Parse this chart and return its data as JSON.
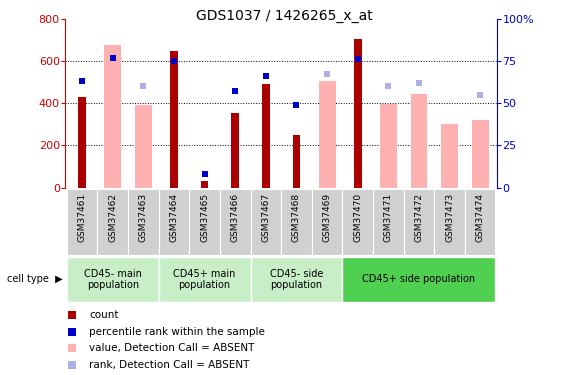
{
  "title": "GDS1037 / 1426265_x_at",
  "samples": [
    "GSM37461",
    "GSM37462",
    "GSM37463",
    "GSM37464",
    "GSM37465",
    "GSM37466",
    "GSM37467",
    "GSM37468",
    "GSM37469",
    "GSM37470",
    "GSM37471",
    "GSM37472",
    "GSM37473",
    "GSM37474"
  ],
  "count_values": [
    430,
    null,
    null,
    645,
    30,
    355,
    490,
    250,
    null,
    705,
    null,
    null,
    null,
    null
  ],
  "percentile_rank": [
    63,
    77,
    null,
    75,
    8,
    57,
    66,
    49,
    null,
    76,
    null,
    null,
    null,
    null
  ],
  "absent_values": [
    null,
    675,
    390,
    null,
    null,
    null,
    null,
    null,
    505,
    null,
    395,
    445,
    300,
    320
  ],
  "absent_ranks": [
    null,
    null,
    60,
    null,
    null,
    null,
    null,
    null,
    67,
    null,
    60,
    62,
    null,
    55
  ],
  "ylim_left": [
    0,
    800
  ],
  "ylim_right": [
    0,
    100
  ],
  "yticks_left": [
    0,
    200,
    400,
    600,
    800
  ],
  "yticks_right": [
    0,
    25,
    50,
    75,
    100
  ],
  "groups": [
    {
      "label": "CD45- main\npopulation",
      "start": 0,
      "end": 2,
      "color": "#c8eec8"
    },
    {
      "label": "CD45+ main\npopulation",
      "start": 3,
      "end": 5,
      "color": "#c8eec8"
    },
    {
      "label": "CD45- side\npopulation",
      "start": 6,
      "end": 8,
      "color": "#c8eec8"
    },
    {
      "label": "CD45+ side population",
      "start": 9,
      "end": 13,
      "color": "#50d050"
    }
  ],
  "dark_red": "#aa0000",
  "dark_blue": "#0000cc",
  "light_pink": "#ffb0b0",
  "light_blue": "#b0b0e8",
  "gray_box": "#d0d0d0"
}
